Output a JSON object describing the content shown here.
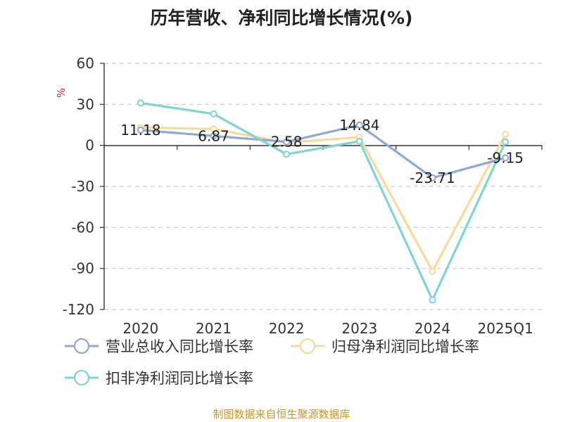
{
  "chart_data": {
    "type": "line",
    "title": "历年营收、净利同比增长情况(%)",
    "ylabel": "%",
    "xlabel": "",
    "categories": [
      "2020",
      "2021",
      "2022",
      "2023",
      "2024",
      "2025Q1"
    ],
    "ylim": [
      -120,
      60
    ],
    "yticks": [
      60,
      30,
      0,
      -30,
      -60,
      -90,
      -120
    ],
    "grid": true,
    "legend_position": "bottom-left",
    "series": [
      {
        "name": "营业总收入同比增长率",
        "color": "#8fa9d6",
        "values": [
          11.18,
          6.87,
          2.58,
          14.84,
          -23.71,
          -9.15
        ],
        "labels": [
          "11.18",
          "6.87",
          "2.58",
          "14.84",
          "-23.71",
          "-9.15"
        ]
      },
      {
        "name": "归母净利润同比增长率",
        "color": "#fbd99a",
        "values": [
          13,
          12,
          2,
          6,
          -92,
          8
        ]
      },
      {
        "name": "扣非净利润同比增长率",
        "color": "#7fd4d4",
        "values": [
          31,
          23,
          -6.5,
          3,
          -113,
          2.5
        ]
      }
    ]
  },
  "source": "制图数据来自恒生聚源数据库"
}
